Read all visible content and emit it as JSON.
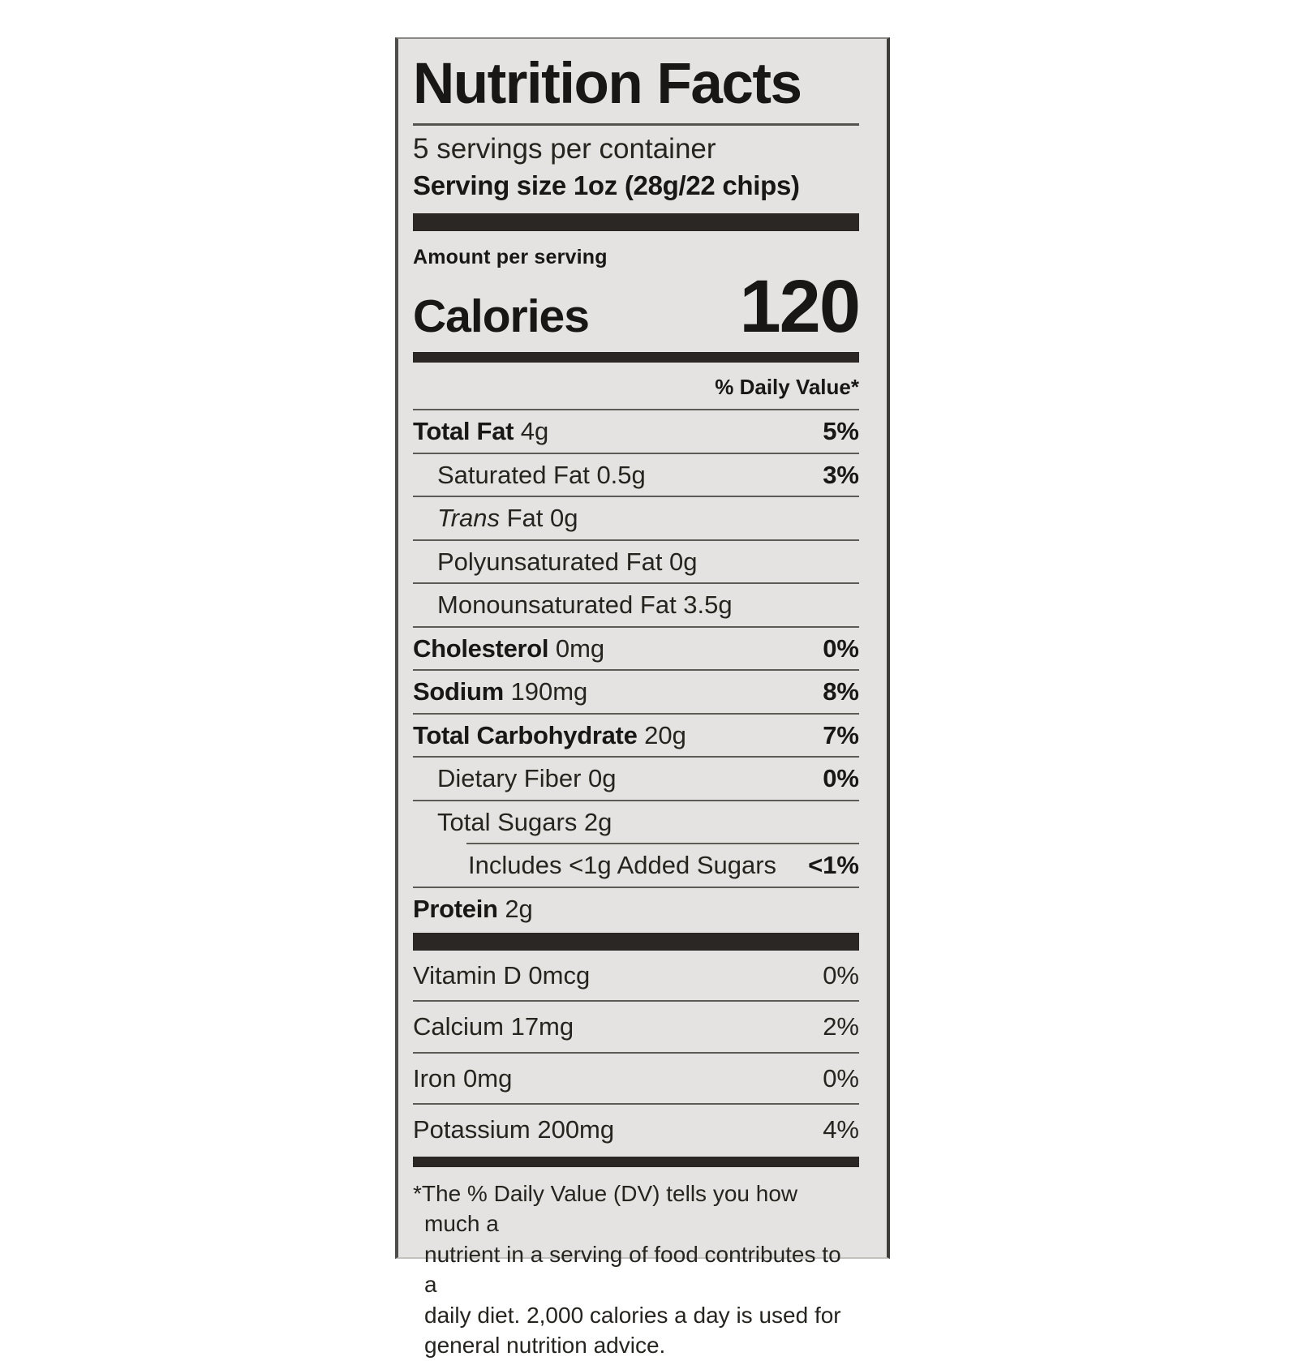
{
  "colors": {
    "label_background": "#e4e3e1",
    "text": "#1f1e1c",
    "bar": "#2b2724",
    "canvas": "#ffffff"
  },
  "label": {
    "title": "Nutrition Facts",
    "servings_per_container": "5 servings per container",
    "serving_size": "Serving size 1oz (28g/22 chips)",
    "amount_per_serving": "Amount per serving",
    "calories_label": "Calories",
    "calories_value": "120",
    "daily_value_header": "% Daily Value*"
  },
  "nutrients": [
    {
      "bold": "Total Fat",
      "rest": " 4g",
      "dv": "5%",
      "dv_bold": true,
      "indent": 0,
      "divider": "full"
    },
    {
      "rest": "Saturated Fat 0.5g",
      "dv": "3%",
      "dv_bold": true,
      "indent": 1,
      "divider": "full"
    },
    {
      "italic": "Trans ",
      "rest": "Fat 0g",
      "dv": "",
      "indent": 1,
      "divider": "full"
    },
    {
      "rest": "Polyunsaturated Fat 0g",
      "dv": "",
      "indent": 1,
      "divider": "full"
    },
    {
      "rest": "Monounsaturated Fat 3.5g",
      "dv": "",
      "indent": 1,
      "divider": "full"
    },
    {
      "bold": "Cholesterol",
      "rest": " 0mg",
      "dv": "0%",
      "dv_bold": true,
      "indent": 0,
      "divider": "full"
    },
    {
      "bold": "Sodium",
      "rest": " 190mg",
      "dv": "8%",
      "dv_bold": true,
      "indent": 0,
      "divider": "full"
    },
    {
      "bold": "Total Carbohydrate",
      "rest": " 20g",
      "dv": "7%",
      "dv_bold": true,
      "indent": 0,
      "divider": "full"
    },
    {
      "rest": "Dietary Fiber 0g",
      "dv": "0%",
      "dv_bold": true,
      "indent": 1,
      "divider": "full"
    },
    {
      "rest": "Total Sugars 2g",
      "dv": "",
      "indent": 1,
      "divider": "full"
    },
    {
      "rest": "Includes <1g Added Sugars",
      "dv": "<1%",
      "dv_bold": true,
      "indent": 2,
      "divider": "inset"
    },
    {
      "bold": "Protein",
      "rest": " 2g",
      "dv": "",
      "indent": 0,
      "divider": "full"
    }
  ],
  "vitamins": [
    {
      "name": "Vitamin D 0mcg",
      "dv": "0%"
    },
    {
      "name": "Calcium 17mg",
      "dv": "2%"
    },
    {
      "name": "Iron 0mg",
      "dv": "0%"
    },
    {
      "name": "Potassium 200mg",
      "dv": "4%"
    }
  ],
  "footnote_lines": [
    "*The % Daily Value (DV) tells you how much a",
    "nutrient in a serving of food contributes to a",
    "daily diet. 2,000 calories a day is used for",
    "general nutrition advice."
  ]
}
